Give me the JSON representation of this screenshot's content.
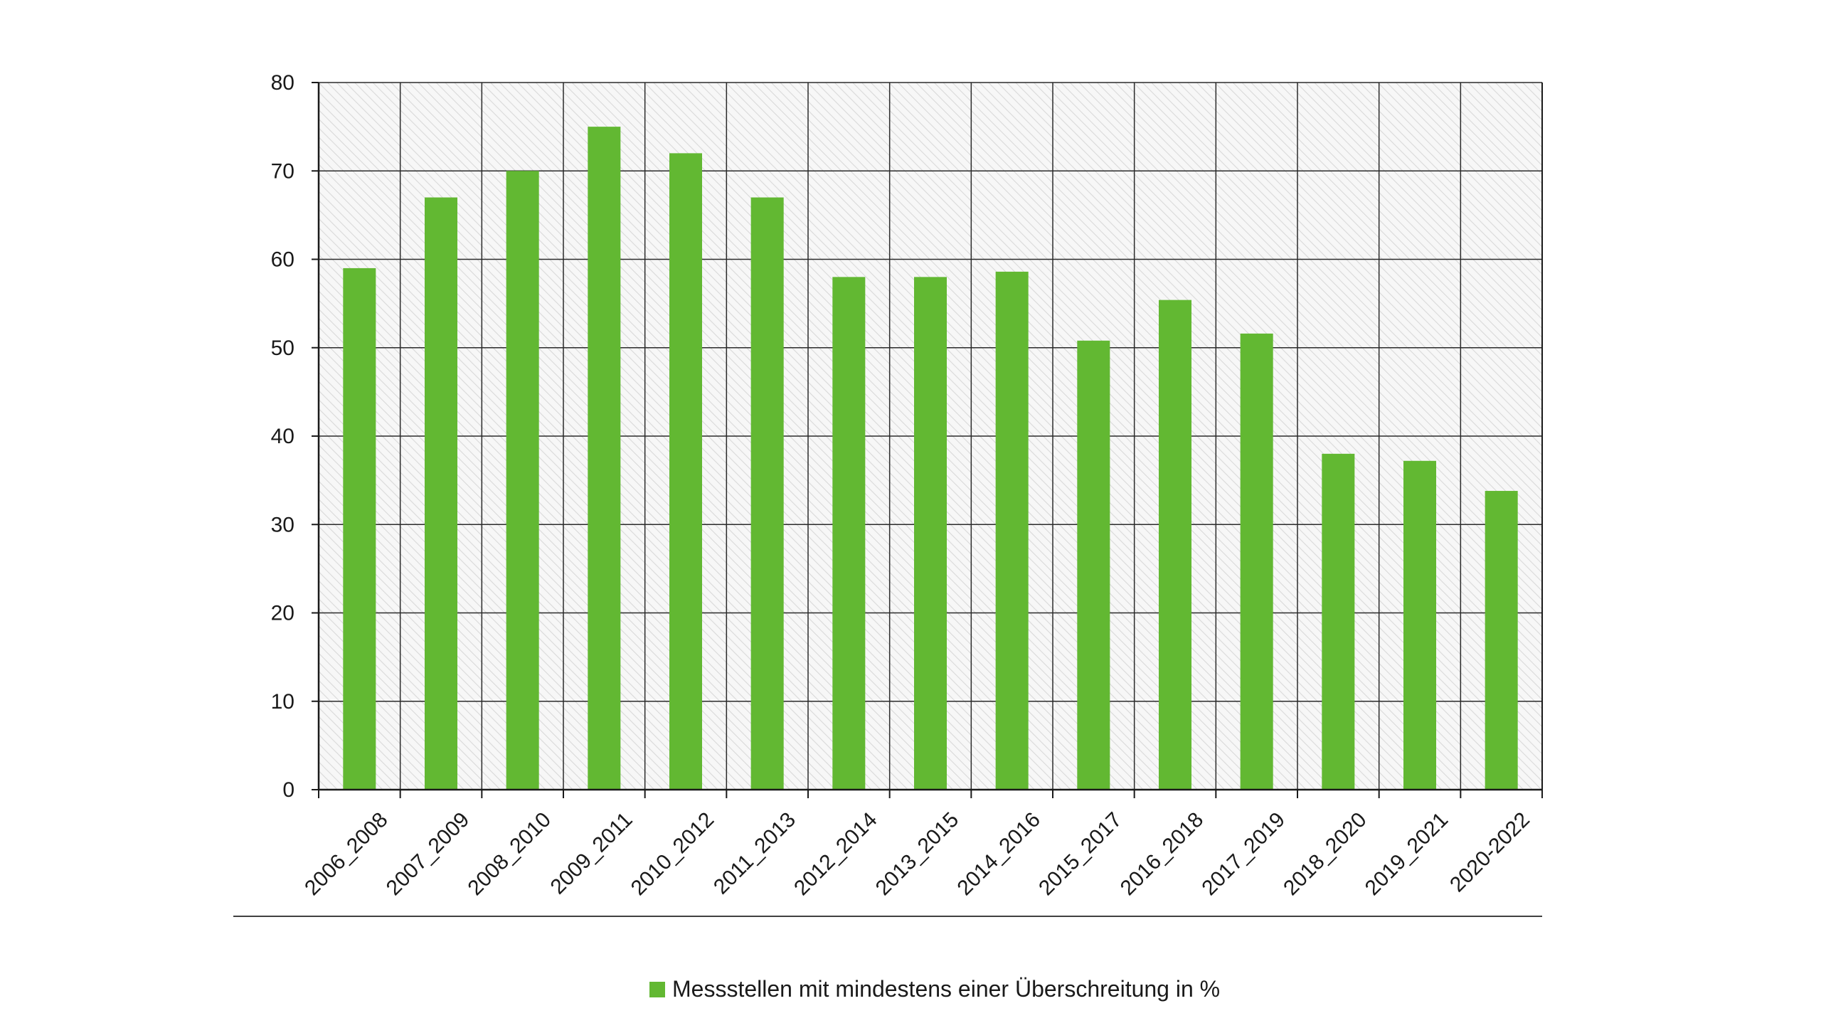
{
  "chart_data": {
    "type": "bar",
    "title": "",
    "xlabel": "",
    "ylabel": "",
    "categories": [
      "2006_2008",
      "2007_2009",
      "2008_2010",
      "2009_2011",
      "2010_2012",
      "2011_2013",
      "2012_2014",
      "2013_2015",
      "2014_2016",
      "2015_2017",
      "2016_2018",
      "2017_2019",
      "2018_2020",
      "2019_2021",
      "2020-2022"
    ],
    "series": [
      {
        "name": "Messstellen mit mindestens einer Überschreitung in %",
        "color": "#62b832",
        "values": [
          59,
          67,
          70,
          75,
          72,
          67,
          58,
          58,
          58.6,
          50.8,
          55.4,
          51.6,
          38,
          37.2,
          33.8
        ]
      }
    ],
    "ylim": [
      0,
      80
    ],
    "yticks": [
      0,
      10,
      20,
      30,
      40,
      50,
      60,
      70,
      80
    ],
    "grid": true,
    "plot_background": "hatched light gray",
    "legend_position": "bottom-center"
  }
}
